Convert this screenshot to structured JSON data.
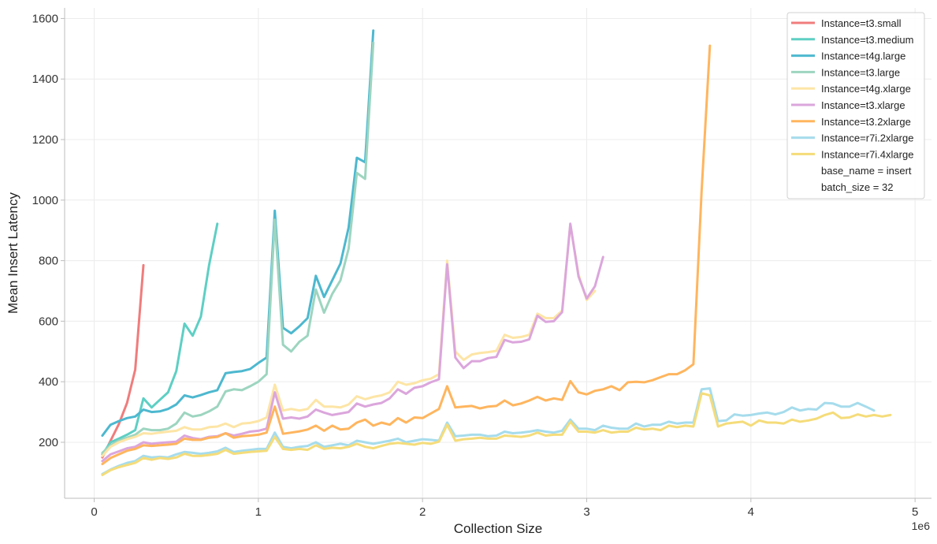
{
  "chart_data": {
    "type": "line",
    "xlabel": "Collection Size",
    "ylabel": "Mean Insert Latency",
    "x_multiplier_label": "1e6",
    "xlim": [
      -0.18,
      5.1
    ],
    "ylim": [
      15,
      1635
    ],
    "xticks": [
      0,
      1,
      2,
      3,
      4,
      5
    ],
    "xtick_labels": [
      "0",
      "1",
      "2",
      "3",
      "4",
      "5"
    ],
    "yticks": [
      200,
      400,
      600,
      800,
      1000,
      1200,
      1400,
      1600
    ],
    "ytick_labels": [
      "200",
      "400",
      "600",
      "800",
      "1000",
      "1200",
      "1400",
      "1600"
    ],
    "grid": true,
    "legend_position": "top-right",
    "legend_notes": [
      "base_name = insert",
      "batch_size = 32"
    ],
    "series": [
      {
        "name": "Instance=t3.small",
        "color": "#f07c7c",
        "x": [
          0.05,
          0.1,
          0.15,
          0.2,
          0.25,
          0.3
        ],
        "y": [
          150,
          205,
          260,
          330,
          440,
          785
        ]
      },
      {
        "name": "Instance=t3.medium",
        "color": "#5ecfc4",
        "x": [
          0.05,
          0.1,
          0.15,
          0.2,
          0.25,
          0.3,
          0.35,
          0.4,
          0.45,
          0.5,
          0.55,
          0.6,
          0.65,
          0.7,
          0.75
        ],
        "y": [
          160,
          200,
          212,
          225,
          240,
          345,
          315,
          340,
          365,
          435,
          592,
          552,
          615,
          785,
          922
        ]
      },
      {
        "name": "Instance=t4g.large",
        "color": "#4db8cf",
        "x": [
          0.05,
          0.1,
          0.15,
          0.2,
          0.25,
          0.3,
          0.35,
          0.4,
          0.45,
          0.5,
          0.55,
          0.6,
          0.65,
          0.7,
          0.75,
          0.8,
          0.85,
          0.9,
          0.95,
          1.0,
          1.05,
          1.1,
          1.15,
          1.2,
          1.25,
          1.3,
          1.35,
          1.4,
          1.45,
          1.5,
          1.55,
          1.6,
          1.65,
          1.7
        ],
        "y": [
          222,
          258,
          270,
          280,
          285,
          308,
          300,
          302,
          310,
          325,
          355,
          348,
          356,
          365,
          372,
          428,
          432,
          435,
          442,
          462,
          480,
          965,
          578,
          560,
          583,
          610,
          750,
          680,
          735,
          790,
          910,
          1140,
          1125,
          1560
        ]
      },
      {
        "name": "Instance=t3.large",
        "color": "#9dd5c0",
        "x": [
          0.05,
          0.1,
          0.15,
          0.2,
          0.25,
          0.3,
          0.35,
          0.4,
          0.45,
          0.5,
          0.55,
          0.6,
          0.65,
          0.7,
          0.75,
          0.8,
          0.85,
          0.9,
          0.95,
          1.0,
          1.05,
          1.1,
          1.15,
          1.2,
          1.25,
          1.3,
          1.35,
          1.4,
          1.45,
          1.5,
          1.55,
          1.6,
          1.65,
          1.7
        ],
        "y": [
          165,
          190,
          205,
          215,
          225,
          245,
          240,
          240,
          245,
          262,
          298,
          285,
          290,
          302,
          318,
          368,
          375,
          372,
          385,
          400,
          425,
          935,
          522,
          500,
          532,
          552,
          705,
          628,
          690,
          735,
          840,
          1090,
          1070,
          1520
        ]
      },
      {
        "name": "Instance=t4g.xlarge",
        "color": "#fde5a6",
        "x": [
          0.05,
          0.1,
          0.15,
          0.2,
          0.25,
          0.3,
          0.35,
          0.4,
          0.45,
          0.5,
          0.55,
          0.6,
          0.65,
          0.7,
          0.75,
          0.8,
          0.85,
          0.9,
          0.95,
          1.0,
          1.05,
          1.1,
          1.15,
          1.2,
          1.25,
          1.3,
          1.35,
          1.4,
          1.45,
          1.5,
          1.55,
          1.6,
          1.65,
          1.7,
          1.75,
          1.8,
          1.85,
          1.9,
          1.95,
          2.0,
          2.05,
          2.1,
          2.15,
          2.2,
          2.25,
          2.3,
          2.35,
          2.4,
          2.45,
          2.5,
          2.55,
          2.6,
          2.65,
          2.7,
          2.75,
          2.8,
          2.85,
          2.9,
          2.95,
          3.0,
          3.05
        ],
        "y": [
          155,
          185,
          200,
          210,
          218,
          230,
          228,
          232,
          235,
          238,
          250,
          242,
          242,
          250,
          252,
          262,
          250,
          262,
          264,
          270,
          282,
          390,
          305,
          310,
          305,
          310,
          340,
          318,
          318,
          315,
          325,
          352,
          342,
          350,
          355,
          365,
          400,
          390,
          395,
          405,
          410,
          425,
          800,
          500,
          472,
          490,
          495,
          498,
          502,
          555,
          545,
          548,
          555,
          625,
          610,
          610,
          635,
          920,
          755,
          670,
          700
        ]
      },
      {
        "name": "Instance=t3.xlarge",
        "color": "#dba6dc",
        "x": [
          0.05,
          0.1,
          0.15,
          0.2,
          0.25,
          0.3,
          0.35,
          0.4,
          0.45,
          0.5,
          0.55,
          0.6,
          0.65,
          0.7,
          0.75,
          0.8,
          0.85,
          0.9,
          0.95,
          1.0,
          1.05,
          1.1,
          1.15,
          1.2,
          1.25,
          1.3,
          1.35,
          1.4,
          1.45,
          1.5,
          1.55,
          1.6,
          1.65,
          1.7,
          1.75,
          1.8,
          1.85,
          1.9,
          1.95,
          2.0,
          2.05,
          2.1,
          2.15,
          2.2,
          2.25,
          2.3,
          2.35,
          2.4,
          2.45,
          2.5,
          2.55,
          2.6,
          2.65,
          2.7,
          2.75,
          2.8,
          2.85,
          2.9,
          2.95,
          3.0,
          3.05,
          3.1
        ],
        "y": [
          138,
          160,
          170,
          180,
          185,
          200,
          195,
          198,
          200,
          202,
          222,
          214,
          210,
          218,
          220,
          230,
          222,
          228,
          235,
          238,
          245,
          365,
          278,
          282,
          278,
          285,
          308,
          298,
          290,
          295,
          300,
          328,
          318,
          325,
          330,
          345,
          375,
          360,
          380,
          385,
          398,
          408,
          788,
          480,
          445,
          468,
          468,
          478,
          482,
          538,
          530,
          532,
          540,
          618,
          598,
          600,
          630,
          922,
          748,
          675,
          715,
          812
        ]
      },
      {
        "name": "Instance=t3.2xlarge",
        "color": "#ffb55e",
        "x": [
          0.05,
          0.1,
          0.15,
          0.2,
          0.25,
          0.3,
          0.35,
          0.4,
          0.45,
          0.5,
          0.55,
          0.6,
          0.65,
          0.7,
          0.75,
          0.8,
          0.85,
          0.9,
          0.95,
          1.0,
          1.05,
          1.1,
          1.15,
          1.2,
          1.25,
          1.3,
          1.35,
          1.4,
          1.45,
          1.5,
          1.55,
          1.6,
          1.65,
          1.7,
          1.75,
          1.8,
          1.85,
          1.9,
          1.95,
          2.0,
          2.05,
          2.1,
          2.15,
          2.2,
          2.25,
          2.3,
          2.35,
          2.4,
          2.45,
          2.5,
          2.55,
          2.6,
          2.65,
          2.7,
          2.75,
          2.8,
          2.85,
          2.9,
          2.95,
          3.0,
          3.05,
          3.1,
          3.15,
          3.2,
          3.25,
          3.3,
          3.35,
          3.4,
          3.45,
          3.5,
          3.55,
          3.6,
          3.65,
          3.7,
          3.75
        ],
        "y": [
          128,
          148,
          160,
          172,
          178,
          190,
          188,
          190,
          192,
          195,
          212,
          208,
          208,
          215,
          218,
          230,
          215,
          220,
          222,
          225,
          232,
          318,
          228,
          232,
          236,
          242,
          255,
          238,
          255,
          242,
          245,
          265,
          275,
          255,
          265,
          258,
          280,
          265,
          282,
          280,
          295,
          310,
          385,
          315,
          318,
          320,
          312,
          318,
          320,
          338,
          322,
          328,
          338,
          350,
          338,
          345,
          340,
          402,
          365,
          358,
          370,
          375,
          385,
          372,
          398,
          400,
          398,
          405,
          415,
          425,
          425,
          438,
          458,
          1030,
          1510
        ]
      },
      {
        "name": "Instance=r7i.2xlarge",
        "color": "#a6dcec",
        "x": [
          0.05,
          0.1,
          0.15,
          0.2,
          0.25,
          0.3,
          0.35,
          0.4,
          0.45,
          0.5,
          0.55,
          0.6,
          0.65,
          0.7,
          0.75,
          0.8,
          0.85,
          0.9,
          0.95,
          1.0,
          1.05,
          1.1,
          1.15,
          1.2,
          1.25,
          1.3,
          1.35,
          1.4,
          1.45,
          1.5,
          1.55,
          1.6,
          1.65,
          1.7,
          1.75,
          1.8,
          1.85,
          1.9,
          1.95,
          2.0,
          2.05,
          2.1,
          2.15,
          2.2,
          2.25,
          2.3,
          2.35,
          2.4,
          2.45,
          2.5,
          2.55,
          2.6,
          2.65,
          2.7,
          2.75,
          2.8,
          2.85,
          2.9,
          2.95,
          3.0,
          3.05,
          3.1,
          3.15,
          3.2,
          3.25,
          3.3,
          3.35,
          3.4,
          3.45,
          3.5,
          3.55,
          3.6,
          3.65,
          3.7,
          3.75,
          3.8,
          3.85,
          3.9,
          3.95,
          4.0,
          4.05,
          4.1,
          4.15,
          4.2,
          4.25,
          4.3,
          4.35,
          4.4,
          4.45,
          4.5,
          4.55,
          4.6,
          4.65,
          4.7,
          4.75
        ],
        "y": [
          95,
          110,
          122,
          132,
          138,
          155,
          150,
          152,
          150,
          160,
          168,
          165,
          162,
          165,
          170,
          182,
          168,
          172,
          175,
          178,
          178,
          232,
          185,
          180,
          185,
          188,
          200,
          185,
          190,
          195,
          190,
          205,
          200,
          195,
          200,
          205,
          212,
          200,
          205,
          210,
          208,
          205,
          265,
          220,
          222,
          225,
          225,
          220,
          222,
          235,
          230,
          232,
          235,
          240,
          235,
          232,
          238,
          275,
          245,
          245,
          240,
          255,
          248,
          245,
          245,
          262,
          252,
          258,
          258,
          268,
          262,
          265,
          265,
          375,
          378,
          270,
          272,
          292,
          288,
          290,
          295,
          298,
          292,
          300,
          315,
          305,
          310,
          308,
          330,
          328,
          318,
          318,
          330,
          318,
          305
        ]
      },
      {
        "name": "Instance=r7i.4xlarge",
        "color": "#f5dc7a",
        "x": [
          0.05,
          0.1,
          0.15,
          0.2,
          0.25,
          0.3,
          0.35,
          0.4,
          0.45,
          0.5,
          0.55,
          0.6,
          0.65,
          0.7,
          0.75,
          0.8,
          0.85,
          0.9,
          0.95,
          1.0,
          1.05,
          1.1,
          1.15,
          1.2,
          1.25,
          1.3,
          1.35,
          1.4,
          1.45,
          1.5,
          1.55,
          1.6,
          1.65,
          1.7,
          1.75,
          1.8,
          1.85,
          1.9,
          1.95,
          2.0,
          2.05,
          2.1,
          2.15,
          2.2,
          2.25,
          2.3,
          2.35,
          2.4,
          2.45,
          2.5,
          2.55,
          2.6,
          2.65,
          2.7,
          2.75,
          2.8,
          2.85,
          2.9,
          2.95,
          3.0,
          3.05,
          3.1,
          3.15,
          3.2,
          3.25,
          3.3,
          3.35,
          3.4,
          3.45,
          3.5,
          3.55,
          3.6,
          3.65,
          3.7,
          3.75,
          3.8,
          3.85,
          3.9,
          3.95,
          4.0,
          4.05,
          4.1,
          4.15,
          4.2,
          4.25,
          4.3,
          4.35,
          4.4,
          4.45,
          4.5,
          4.55,
          4.6,
          4.65,
          4.7,
          4.75,
          4.8,
          4.85
        ],
        "y": [
          92,
          108,
          118,
          125,
          132,
          148,
          142,
          148,
          145,
          150,
          162,
          155,
          155,
          158,
          162,
          175,
          162,
          165,
          168,
          170,
          172,
          218,
          178,
          175,
          178,
          175,
          190,
          178,
          182,
          180,
          185,
          195,
          185,
          180,
          188,
          195,
          198,
          195,
          192,
          198,
          195,
          202,
          258,
          205,
          210,
          212,
          215,
          212,
          212,
          222,
          220,
          218,
          222,
          232,
          222,
          225,
          225,
          268,
          235,
          235,
          232,
          240,
          232,
          235,
          235,
          248,
          242,
          245,
          240,
          255,
          250,
          255,
          252,
          362,
          355,
          252,
          262,
          265,
          268,
          255,
          272,
          265,
          265,
          262,
          275,
          268,
          272,
          278,
          290,
          298,
          280,
          282,
          292,
          285,
          290,
          285,
          290
        ]
      }
    ]
  }
}
